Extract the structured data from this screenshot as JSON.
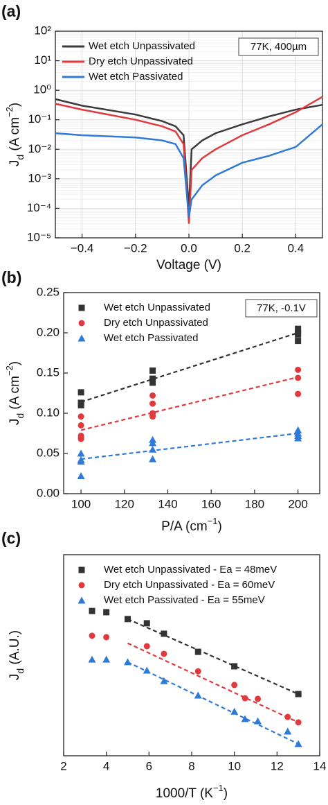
{
  "chart_data": [
    {
      "type": "line",
      "title": "(a)",
      "annotation": "77K, 400µm",
      "xlabel": [
        {
          "text": "Voltage (V)"
        }
      ],
      "ylabel": [
        {
          "text": "J"
        },
        {
          "text": "d",
          "script": "sub"
        },
        {
          "text": " (A cm"
        },
        {
          "text": "−2",
          "script": "sup"
        },
        {
          "text": ")"
        }
      ],
      "log_y": true,
      "grid": true,
      "legend": "upper left",
      "xlim": [
        -0.5,
        0.5
      ],
      "xticks": [
        {
          "value": -0.4,
          "label": "−0.4"
        },
        {
          "value": -0.2,
          "label": "−0.2"
        },
        {
          "value": 0,
          "label": "0.0"
        },
        0.2,
        0.4
      ],
      "ylim": [
        1e-05,
        100
      ],
      "yticks": [
        {
          "value": 1e-05,
          "label": "10⁻⁵"
        },
        {
          "value": 0.0001,
          "label": "10⁻⁴"
        },
        {
          "value": 0.001,
          "label": "10⁻³"
        },
        {
          "value": 0.01,
          "label": "10⁻²"
        },
        {
          "value": 0.1,
          "label": "10⁻¹"
        },
        {
          "value": 1,
          "label": "10⁰"
        },
        {
          "value": 10,
          "label": "10¹"
        },
        {
          "value": 100,
          "label": "10²"
        }
      ],
      "series": [
        {
          "name": "Wet etch Unpassivated",
          "color": "#3a3a3a",
          "x": [
            -0.5,
            -0.4,
            -0.2,
            -0.1,
            -0.05,
            -0.02,
            0,
            0.01,
            0.05,
            0.1,
            0.2,
            0.3,
            0.4,
            0.5
          ],
          "values": [
            0.5,
            0.3,
            0.15,
            0.09,
            0.06,
            0.03,
            0.0001,
            0.01,
            0.02,
            0.035,
            0.07,
            0.13,
            0.22,
            0.32
          ]
        },
        {
          "name": "Dry etch Unpassivated",
          "color": "#e03a3e",
          "x": [
            -0.5,
            -0.4,
            -0.2,
            -0.1,
            -0.05,
            -0.02,
            0,
            0.01,
            0.05,
            0.1,
            0.2,
            0.3,
            0.4,
            0.5
          ],
          "values": [
            0.35,
            0.22,
            0.1,
            0.06,
            0.04,
            0.015,
            3e-05,
            0.002,
            0.005,
            0.01,
            0.03,
            0.07,
            0.18,
            0.6
          ]
        },
        {
          "name": "Wet etch Passivated",
          "color": "#2f7ad6",
          "x": [
            -0.5,
            -0.4,
            -0.2,
            -0.1,
            -0.05,
            -0.02,
            0,
            0.01,
            0.05,
            0.1,
            0.2,
            0.3,
            0.4,
            0.5
          ],
          "values": [
            0.035,
            0.03,
            0.025,
            0.02,
            0.015,
            0.005,
            5e-05,
            0.0002,
            0.0006,
            0.0013,
            0.0035,
            0.006,
            0.012,
            0.07
          ]
        }
      ]
    },
    {
      "type": "scatter",
      "title": "(b)",
      "annotation": "77K, -0.1V",
      "xlabel": [
        {
          "text": "P/A (cm"
        },
        {
          "text": "−1",
          "script": "sup"
        },
        {
          "text": ")"
        }
      ],
      "ylabel": [
        {
          "text": "J"
        },
        {
          "text": "d",
          "script": "sub"
        },
        {
          "text": " (A cm"
        },
        {
          "text": "−2",
          "script": "sup"
        },
        {
          "text": ")"
        }
      ],
      "legend": "upper left",
      "xlim": [
        92,
        210
      ],
      "xticks": [
        100,
        120,
        140,
        160,
        180,
        200
      ],
      "ylim": [
        0,
        0.25
      ],
      "yticks": [
        {
          "value": 0,
          "label": "0.00"
        },
        {
          "value": 0.05,
          "label": "0.05"
        },
        {
          "value": 0.1,
          "label": "0.10"
        },
        {
          "value": 0.15,
          "label": "0.15"
        },
        {
          "value": 0.2,
          "label": "0.20"
        },
        {
          "value": 0.25,
          "label": "0.25"
        }
      ],
      "series": [
        {
          "name": "Wet etch Unpassivated",
          "color": "#333333",
          "marker": "square",
          "x": [
            100,
            100,
            100,
            100,
            133,
            133,
            133,
            200,
            200,
            200,
            200
          ],
          "values": [
            0.126,
            0.112,
            0.11,
            0.113,
            0.153,
            0.143,
            0.138,
            0.205,
            0.2,
            0.19,
            0.198
          ],
          "fit": {
            "x": [
              100,
              200
            ],
            "values": [
              0.114,
              0.2
            ]
          }
        },
        {
          "name": "Dry etch Unpassivated",
          "color": "#e03a3e",
          "marker": "circle",
          "x": [
            100,
            100,
            100,
            100,
            100,
            133,
            133,
            133,
            133,
            133,
            200,
            200,
            200
          ],
          "values": [
            0.096,
            0.085,
            0.072,
            0.068,
            0.07,
            0.122,
            0.112,
            0.1,
            0.097,
            0.096,
            0.154,
            0.144,
            0.124
          ],
          "fit": {
            "x": [
              100,
              200
            ],
            "values": [
              0.079,
              0.145
            ]
          }
        },
        {
          "name": "Wet etch Passivated",
          "color": "#2f7ad6",
          "marker": "triangle",
          "x": [
            100,
            100,
            100,
            100,
            133,
            133,
            133,
            133,
            200,
            200,
            200,
            200
          ],
          "values": [
            0.05,
            0.042,
            0.04,
            0.022,
            0.067,
            0.063,
            0.055,
            0.043,
            0.079,
            0.075,
            0.072,
            0.069
          ],
          "fit": {
            "x": [
              100,
              200
            ],
            "values": [
              0.043,
              0.075
            ]
          }
        }
      ]
    },
    {
      "type": "scatter",
      "title": "(c)",
      "xlabel": [
        {
          "text": "1000/T (K"
        },
        {
          "text": "−1",
          "script": "sup"
        },
        {
          "text": ")"
        }
      ],
      "ylabel": [
        {
          "text": "J"
        },
        {
          "text": "d",
          "script": "sub"
        },
        {
          "text": " (A.U.)"
        }
      ],
      "legend": "upper left",
      "xlim": [
        2,
        14
      ],
      "xticks": [
        2,
        4,
        6,
        8,
        10,
        12,
        14
      ],
      "ylim": [
        0,
        10
      ],
      "series": [
        {
          "name": "Wet etch Unpassivated - Ea = 48meV",
          "color": "#333333",
          "marker": "square",
          "x": [
            3.33,
            4,
            5,
            5.9,
            6.7,
            8.3,
            10,
            13
          ],
          "values": [
            7.2,
            7.14,
            6.8,
            6.59,
            6.07,
            5.17,
            4.45,
            3.07
          ],
          "fit": {
            "x": [
              5,
              13
            ],
            "values": [
              6.8,
              3.07
            ]
          }
        },
        {
          "name": "Dry etch Unpassivated - Ea = 60meV",
          "color": "#e03a3e",
          "marker": "circle",
          "x": [
            3.33,
            4,
            5.9,
            6.7,
            8.3,
            10,
            10.5,
            11.1,
            12.5,
            13
          ],
          "values": [
            5.97,
            5.9,
            5.45,
            5.07,
            4.2,
            3.52,
            2.86,
            2.83,
            1.93,
            1.66
          ],
          "fit": {
            "x": [
              5,
              13
            ],
            "values": [
              5.6,
              1.66
            ]
          }
        },
        {
          "name": "Wet etch Passivated - Ea = 55meV",
          "color": "#2f7ad6",
          "marker": "triangle",
          "x": [
            3.33,
            4,
            5,
            5.9,
            6.7,
            8.3,
            10,
            10.5,
            11.1,
            12.5,
            13
          ],
          "values": [
            4.79,
            4.79,
            4.66,
            4.24,
            3.72,
            3,
            2.2,
            1.83,
            1.72,
            1.21,
            0.59
          ],
          "fit": {
            "x": [
              5,
              13
            ],
            "values": [
              4.66,
              0.59
            ]
          }
        }
      ]
    }
  ]
}
